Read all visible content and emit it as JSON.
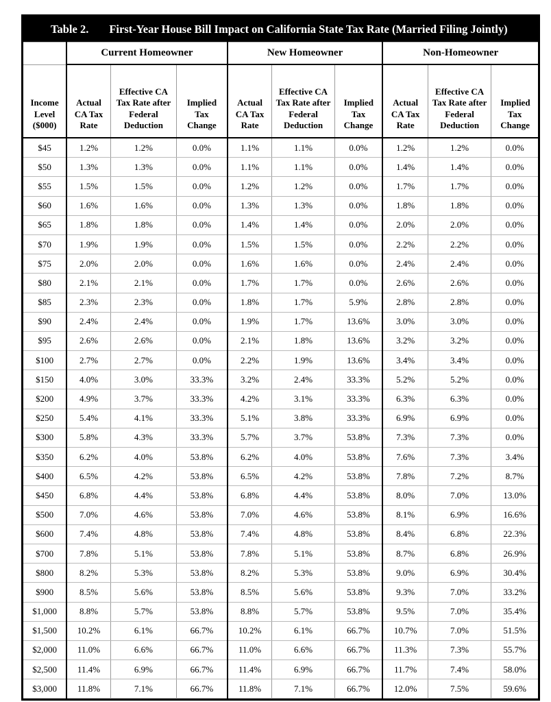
{
  "table": {
    "label": "Table 2.",
    "title": "First-Year House Bill Impact on California State Tax Rate (Married Filing Jointly)",
    "income_header": "Income Level ($000)",
    "groups": [
      "Current Homeowner",
      "New Homeowner",
      "Non-Homeowner"
    ],
    "columns": [
      "Actual CA Tax Rate",
      "Effective CA Tax Rate after Federal Deduction",
      "Implied Tax Change"
    ],
    "rows": [
      [
        "$45",
        "1.2%",
        "1.2%",
        "0.0%",
        "1.1%",
        "1.1%",
        "0.0%",
        "1.2%",
        "1.2%",
        "0.0%"
      ],
      [
        "$50",
        "1.3%",
        "1.3%",
        "0.0%",
        "1.1%",
        "1.1%",
        "0.0%",
        "1.4%",
        "1.4%",
        "0.0%"
      ],
      [
        "$55",
        "1.5%",
        "1.5%",
        "0.0%",
        "1.2%",
        "1.2%",
        "0.0%",
        "1.7%",
        "1.7%",
        "0.0%"
      ],
      [
        "$60",
        "1.6%",
        "1.6%",
        "0.0%",
        "1.3%",
        "1.3%",
        "0.0%",
        "1.8%",
        "1.8%",
        "0.0%"
      ],
      [
        "$65",
        "1.8%",
        "1.8%",
        "0.0%",
        "1.4%",
        "1.4%",
        "0.0%",
        "2.0%",
        "2.0%",
        "0.0%"
      ],
      [
        "$70",
        "1.9%",
        "1.9%",
        "0.0%",
        "1.5%",
        "1.5%",
        "0.0%",
        "2.2%",
        "2.2%",
        "0.0%"
      ],
      [
        "$75",
        "2.0%",
        "2.0%",
        "0.0%",
        "1.6%",
        "1.6%",
        "0.0%",
        "2.4%",
        "2.4%",
        "0.0%"
      ],
      [
        "$80",
        "2.1%",
        "2.1%",
        "0.0%",
        "1.7%",
        "1.7%",
        "0.0%",
        "2.6%",
        "2.6%",
        "0.0%"
      ],
      [
        "$85",
        "2.3%",
        "2.3%",
        "0.0%",
        "1.8%",
        "1.7%",
        "5.9%",
        "2.8%",
        "2.8%",
        "0.0%"
      ],
      [
        "$90",
        "2.4%",
        "2.4%",
        "0.0%",
        "1.9%",
        "1.7%",
        "13.6%",
        "3.0%",
        "3.0%",
        "0.0%"
      ],
      [
        "$95",
        "2.6%",
        "2.6%",
        "0.0%",
        "2.1%",
        "1.8%",
        "13.6%",
        "3.2%",
        "3.2%",
        "0.0%"
      ],
      [
        "$100",
        "2.7%",
        "2.7%",
        "0.0%",
        "2.2%",
        "1.9%",
        "13.6%",
        "3.4%",
        "3.4%",
        "0.0%"
      ],
      [
        "$150",
        "4.0%",
        "3.0%",
        "33.3%",
        "3.2%",
        "2.4%",
        "33.3%",
        "5.2%",
        "5.2%",
        "0.0%"
      ],
      [
        "$200",
        "4.9%",
        "3.7%",
        "33.3%",
        "4.2%",
        "3.1%",
        "33.3%",
        "6.3%",
        "6.3%",
        "0.0%"
      ],
      [
        "$250",
        "5.4%",
        "4.1%",
        "33.3%",
        "5.1%",
        "3.8%",
        "33.3%",
        "6.9%",
        "6.9%",
        "0.0%"
      ],
      [
        "$300",
        "5.8%",
        "4.3%",
        "33.3%",
        "5.7%",
        "3.7%",
        "53.8%",
        "7.3%",
        "7.3%",
        "0.0%"
      ],
      [
        "$350",
        "6.2%",
        "4.0%",
        "53.8%",
        "6.2%",
        "4.0%",
        "53.8%",
        "7.6%",
        "7.3%",
        "3.4%"
      ],
      [
        "$400",
        "6.5%",
        "4.2%",
        "53.8%",
        "6.5%",
        "4.2%",
        "53.8%",
        "7.8%",
        "7.2%",
        "8.7%"
      ],
      [
        "$450",
        "6.8%",
        "4.4%",
        "53.8%",
        "6.8%",
        "4.4%",
        "53.8%",
        "8.0%",
        "7.0%",
        "13.0%"
      ],
      [
        "$500",
        "7.0%",
        "4.6%",
        "53.8%",
        "7.0%",
        "4.6%",
        "53.8%",
        "8.1%",
        "6.9%",
        "16.6%"
      ],
      [
        "$600",
        "7.4%",
        "4.8%",
        "53.8%",
        "7.4%",
        "4.8%",
        "53.8%",
        "8.4%",
        "6.8%",
        "22.3%"
      ],
      [
        "$700",
        "7.8%",
        "5.1%",
        "53.8%",
        "7.8%",
        "5.1%",
        "53.8%",
        "8.7%",
        "6.8%",
        "26.9%"
      ],
      [
        "$800",
        "8.2%",
        "5.3%",
        "53.8%",
        "8.2%",
        "5.3%",
        "53.8%",
        "9.0%",
        "6.9%",
        "30.4%"
      ],
      [
        "$900",
        "8.5%",
        "5.6%",
        "53.8%",
        "8.5%",
        "5.6%",
        "53.8%",
        "9.3%",
        "7.0%",
        "33.2%"
      ],
      [
        "$1,000",
        "8.8%",
        "5.7%",
        "53.8%",
        "8.8%",
        "5.7%",
        "53.8%",
        "9.5%",
        "7.0%",
        "35.4%"
      ],
      [
        "$1,500",
        "10.2%",
        "6.1%",
        "66.7%",
        "10.2%",
        "6.1%",
        "66.7%",
        "10.7%",
        "7.0%",
        "51.5%"
      ],
      [
        "$2,000",
        "11.0%",
        "6.6%",
        "66.7%",
        "11.0%",
        "6.6%",
        "66.7%",
        "11.3%",
        "7.3%",
        "55.7%"
      ],
      [
        "$2,500",
        "11.4%",
        "6.9%",
        "66.7%",
        "11.4%",
        "6.9%",
        "66.7%",
        "11.7%",
        "7.4%",
        "58.0%"
      ],
      [
        "$3,000",
        "11.8%",
        "7.1%",
        "66.7%",
        "11.8%",
        "7.1%",
        "66.7%",
        "12.0%",
        "7.5%",
        "59.6%"
      ]
    ]
  },
  "colors": {
    "title_bg": "#000000",
    "title_text": "#ffffff",
    "border_strong": "#000000",
    "border_light": "#9a9a9a"
  }
}
